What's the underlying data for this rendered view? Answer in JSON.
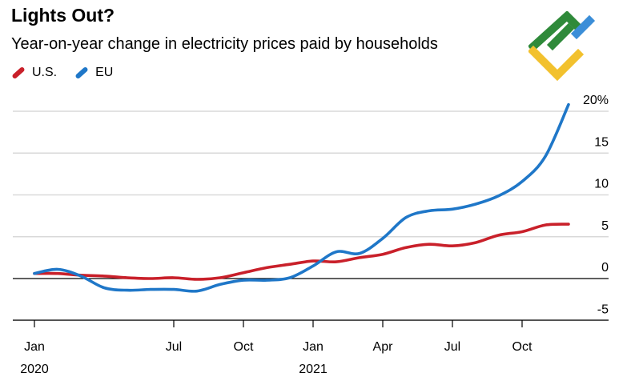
{
  "title": "Lights Out?",
  "subtitle": "Year-on-year change in electricity prices paid by households",
  "colors": {
    "us": "#c9202a",
    "eu": "#1f77c8",
    "axis": "#000000",
    "grid": "#d9d9d9",
    "logo_green": "#2f8a3a",
    "logo_yellow": "#f2c12e",
    "logo_blue": "#3b8ed8"
  },
  "logo_icon": "brand-logo-icon",
  "chart_data": {
    "type": "line",
    "title": "Lights Out?",
    "subtitle": "Year-on-year change in electricity prices paid by households",
    "xlabel": "",
    "ylabel": "",
    "ylim": [
      -5,
      20
    ],
    "xlim": [
      0,
      24
    ],
    "y_ticks": [
      {
        "value": 20,
        "label": "20%"
      },
      {
        "value": 15,
        "label": "15"
      },
      {
        "value": 10,
        "label": "10"
      },
      {
        "value": 5,
        "label": "5"
      },
      {
        "value": 0,
        "label": "0"
      },
      {
        "value": -5,
        "label": "-5"
      }
    ],
    "x_ticks": [
      {
        "value": 0,
        "label": "Jan",
        "sublabel": "2020"
      },
      {
        "value": 6,
        "label": "Jul",
        "sublabel": ""
      },
      {
        "value": 9,
        "label": "Oct",
        "sublabel": ""
      },
      {
        "value": 12,
        "label": "Jan",
        "sublabel": "2021"
      },
      {
        "value": 15,
        "label": "Apr",
        "sublabel": ""
      },
      {
        "value": 18,
        "label": "Jul",
        "sublabel": ""
      },
      {
        "value": 21,
        "label": "Oct",
        "sublabel": ""
      }
    ],
    "series": [
      {
        "name": "U.S.",
        "color": "#c9202a",
        "x": [
          0,
          1,
          2,
          3,
          4,
          5,
          6,
          7,
          8,
          9,
          10,
          11,
          12,
          13,
          14,
          15,
          16,
          17,
          18,
          19,
          20,
          21,
          22,
          23
        ],
        "values": [
          0.6,
          0.6,
          0.4,
          0.3,
          0.1,
          0.0,
          0.1,
          -0.1,
          0.1,
          0.7,
          1.3,
          1.7,
          2.1,
          2.0,
          2.5,
          2.9,
          3.7,
          4.1,
          3.9,
          4.3,
          5.2,
          5.6,
          6.4,
          6.5
        ]
      },
      {
        "name": "EU",
        "color": "#1f77c8",
        "x": [
          0,
          1,
          2,
          3,
          4,
          5,
          6,
          7,
          8,
          9,
          10,
          11,
          12,
          13,
          14,
          15,
          16,
          17,
          18,
          19,
          20,
          21,
          22,
          23
        ],
        "values": [
          0.6,
          1.1,
          0.3,
          -1.1,
          -1.4,
          -1.3,
          -1.3,
          -1.5,
          -0.7,
          -0.2,
          -0.2,
          0.1,
          1.5,
          3.2,
          3.0,
          4.8,
          7.3,
          8.1,
          8.3,
          8.9,
          9.9,
          11.6,
          14.6,
          20.8
        ]
      }
    ],
    "legend": "top-left",
    "grid": true
  }
}
